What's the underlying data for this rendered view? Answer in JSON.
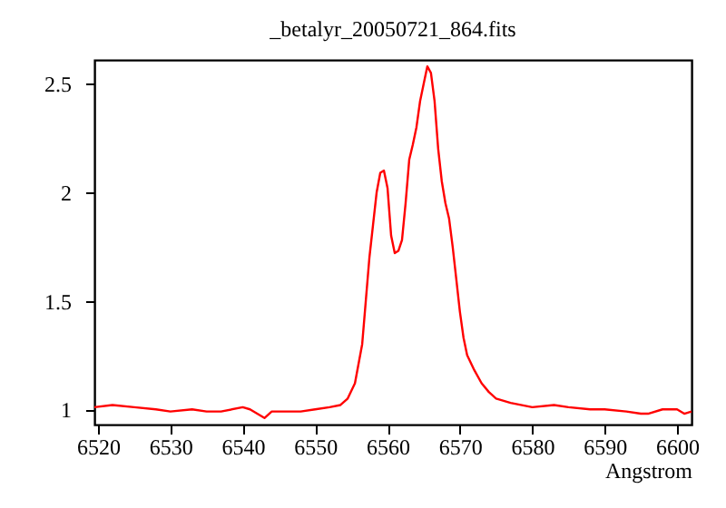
{
  "chart_data": {
    "type": "line",
    "title": "_betalyr_20050721_864.fits",
    "xlabel": "Angstrom",
    "xlim": [
      6519.5,
      6602
    ],
    "ylim": [
      0.93,
      2.61
    ],
    "xticks": [
      6520,
      6530,
      6540,
      6550,
      6560,
      6570,
      6580,
      6590,
      6600
    ],
    "yticks": [
      1,
      1.5,
      2,
      2.5
    ],
    "grid": false,
    "series": [
      {
        "color": "#ff0000",
        "x": [
          6519.5,
          6522,
          6525,
          6528,
          6530,
          6533,
          6535,
          6537,
          6540,
          6541,
          6542,
          6543,
          6544,
          6546,
          6548,
          6550,
          6552,
          6553.5,
          6554.5,
          6555.5,
          6556.5,
          6557,
          6557.5,
          6558,
          6558.5,
          6559,
          6559.5,
          6560,
          6560.5,
          6561,
          6561.5,
          6562,
          6562.5,
          6563,
          6563.5,
          6564,
          6564.5,
          6565,
          6565.5,
          6566,
          6566.5,
          6567,
          6567.5,
          6568,
          6568.5,
          6569,
          6569.5,
          6570,
          6570.5,
          6571,
          6572,
          6573,
          6574,
          6575,
          6577,
          6580,
          6583,
          6585,
          6588,
          6590,
          6593,
          6595,
          6596,
          6598,
          6600,
          6601,
          6602
        ],
        "values": [
          1.01,
          1.02,
          1.01,
          1.0,
          0.99,
          1.0,
          0.99,
          0.99,
          1.01,
          1.0,
          0.98,
          0.96,
          0.99,
          0.99,
          0.99,
          1.0,
          1.01,
          1.02,
          1.05,
          1.12,
          1.3,
          1.5,
          1.7,
          1.85,
          2.0,
          2.09,
          2.1,
          2.02,
          1.8,
          1.72,
          1.73,
          1.78,
          1.95,
          2.15,
          2.22,
          2.3,
          2.42,
          2.5,
          2.58,
          2.55,
          2.42,
          2.2,
          2.05,
          1.95,
          1.88,
          1.75,
          1.6,
          1.45,
          1.33,
          1.25,
          1.18,
          1.12,
          1.08,
          1.05,
          1.03,
          1.01,
          1.02,
          1.01,
          1.0,
          1.0,
          0.99,
          0.98,
          0.98,
          1.0,
          1.0,
          0.98,
          0.99
        ]
      }
    ]
  }
}
